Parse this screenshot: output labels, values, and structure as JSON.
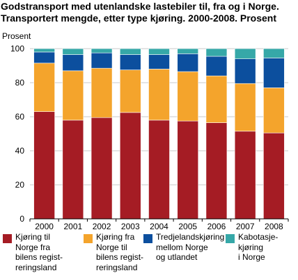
{
  "title_line1": "Godstransport med utenlandske lastebiler til, fra og i Norge.",
  "title_line2": "Transportert mengde, etter type kjøring. 2000-2008. Prosent",
  "chart_data": {
    "type": "bar",
    "stacked": true,
    "ylabel": "Prosent",
    "ylim": [
      0,
      100
    ],
    "yticks": [
      0,
      20,
      40,
      60,
      80,
      100
    ],
    "grid": true,
    "categories": [
      "2000",
      "2001",
      "2002",
      "2003",
      "2004",
      "2005",
      "2006",
      "2007",
      "2008"
    ],
    "series": [
      {
        "name": "Kjøring til\nNorge fra\nbilens regist-\nreringsland",
        "color": "#a51c24",
        "values": [
          63,
          58,
          59.5,
          62.5,
          58,
          57.5,
          56.5,
          51.5,
          50.5
        ]
      },
      {
        "name": "Kjøring fra\nNorge til\nbilens regist-\nreringsland",
        "color": "#f4a42c",
        "values": [
          28.5,
          29,
          29,
          25,
          30,
          29,
          27.5,
          28,
          26.5
        ]
      },
      {
        "name": "Tredjelandskjøring\nmellom Norge\nog utlandet",
        "color": "#0c4f9e",
        "values": [
          6.5,
          9.5,
          9,
          9,
          8.5,
          10.5,
          11.5,
          14.5,
          17.5
        ]
      },
      {
        "name": "Kabotasje-\nkjøring\ni Norge",
        "color": "#36a8a8",
        "values": [
          2,
          3.5,
          2.5,
          3.5,
          3.5,
          3,
          4.5,
          6,
          5.5
        ]
      }
    ]
  }
}
